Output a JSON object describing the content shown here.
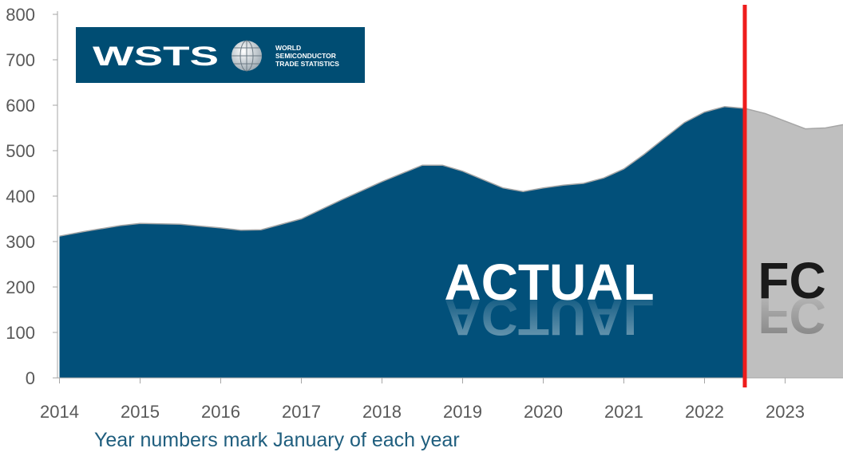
{
  "chart_data": {
    "type": "area",
    "x_unit": "year",
    "x_range": [
      2014.0,
      2023.8
    ],
    "ylim": [
      0,
      800
    ],
    "yticks": [
      0,
      100,
      200,
      300,
      400,
      500,
      600,
      700,
      800
    ],
    "xticks": [
      2014,
      2015,
      2016,
      2017,
      2018,
      2019,
      2020,
      2021,
      2022,
      2023
    ],
    "ytick_labels": [
      "0",
      "100",
      "200",
      "300",
      "400",
      "500",
      "600",
      "700",
      "800"
    ],
    "xtick_labels": [
      "2014",
      "2015",
      "2016",
      "2017",
      "2018",
      "2019",
      "2020",
      "2021",
      "2022",
      "2023"
    ],
    "xlabel": "Year numbers mark January of each year",
    "ylabel": "",
    "grid": false,
    "split_x": 2022.5,
    "actual_label": "ACTUAL",
    "forecast_label": "FC",
    "series": [
      {
        "name": "ACTUAL",
        "color": "#02507a",
        "x": [
          2014.0,
          2014.3,
          2014.75,
          2015.0,
          2015.5,
          2016.0,
          2016.25,
          2016.5,
          2017.0,
          2017.5,
          2018.0,
          2018.5,
          2018.75,
          2019.0,
          2019.5,
          2019.75,
          2020.0,
          2020.25,
          2020.5,
          2020.75,
          2021.0,
          2021.25,
          2021.5,
          2021.75,
          2022.0,
          2022.25,
          2022.5
        ],
        "y": [
          312,
          322,
          335,
          340,
          338,
          330,
          325,
          326,
          350,
          392,
          432,
          468,
          468,
          455,
          418,
          410,
          418,
          424,
          428,
          440,
          460,
          492,
          527,
          562,
          585,
          597,
          593
        ]
      },
      {
        "name": "FC",
        "color": "#bfbfbf",
        "x": [
          2022.5,
          2022.75,
          2023.0,
          2023.25,
          2023.5,
          2023.8
        ],
        "y": [
          593,
          582,
          565,
          548,
          550,
          560
        ]
      }
    ],
    "split_line_color": "#ee1c1c"
  },
  "logo": {
    "wordmark": "WSTS",
    "line1": "WORLD",
    "line2": "SEMICONDUCTOR",
    "line3": "TRADE STATISTICS",
    "background": "#004d73"
  }
}
